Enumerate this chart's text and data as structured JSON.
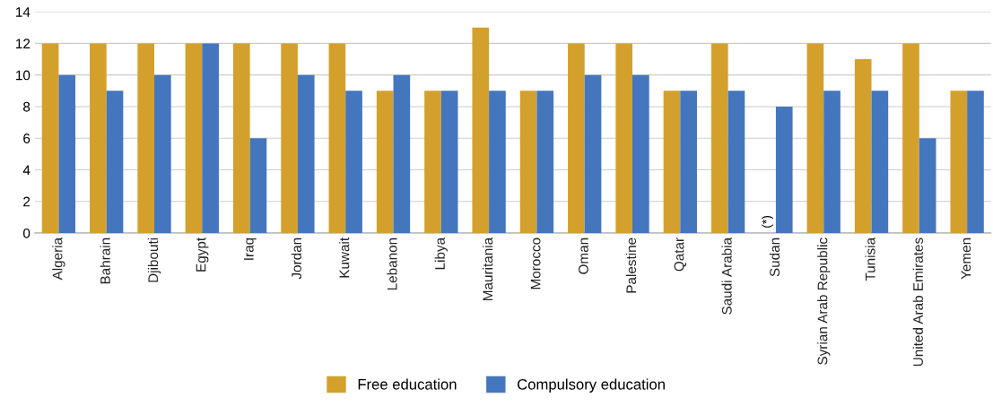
{
  "chart_data": {
    "type": "bar",
    "categories": [
      "Algeria",
      "Bahrain",
      "Djibouti",
      "Egypt",
      "Iraq",
      "Jordan",
      "Kuwait",
      "Lebanon",
      "Libya",
      "Mauritania",
      "Morocco",
      "Oman",
      "Palestine",
      "Qatar",
      "Saudi Arabia",
      "Sudan",
      "Syrian Arab Republic",
      "Tunisia",
      "United Arab Emirates",
      "Yemen"
    ],
    "series": [
      {
        "name": "Free education",
        "color": "#d4a02c",
        "values": [
          12,
          12,
          12,
          12,
          12,
          12,
          12,
          9,
          9,
          13,
          9,
          12,
          12,
          9,
          12,
          null,
          12,
          11,
          12,
          9
        ]
      },
      {
        "name": "Compulsory education",
        "color": "#4476be",
        "values": [
          10,
          9,
          10,
          12,
          6,
          10,
          9,
          10,
          9,
          9,
          9,
          10,
          10,
          9,
          9,
          8,
          9,
          9,
          6,
          9
        ]
      }
    ],
    "ylim": [
      0,
      14
    ],
    "yticks": [
      0,
      2,
      4,
      6,
      8,
      10,
      12,
      14
    ],
    "grid": "y",
    "legend": "bottom",
    "annotations": [
      {
        "text": "(*)",
        "x": "Sudan",
        "y": 0
      }
    ]
  }
}
